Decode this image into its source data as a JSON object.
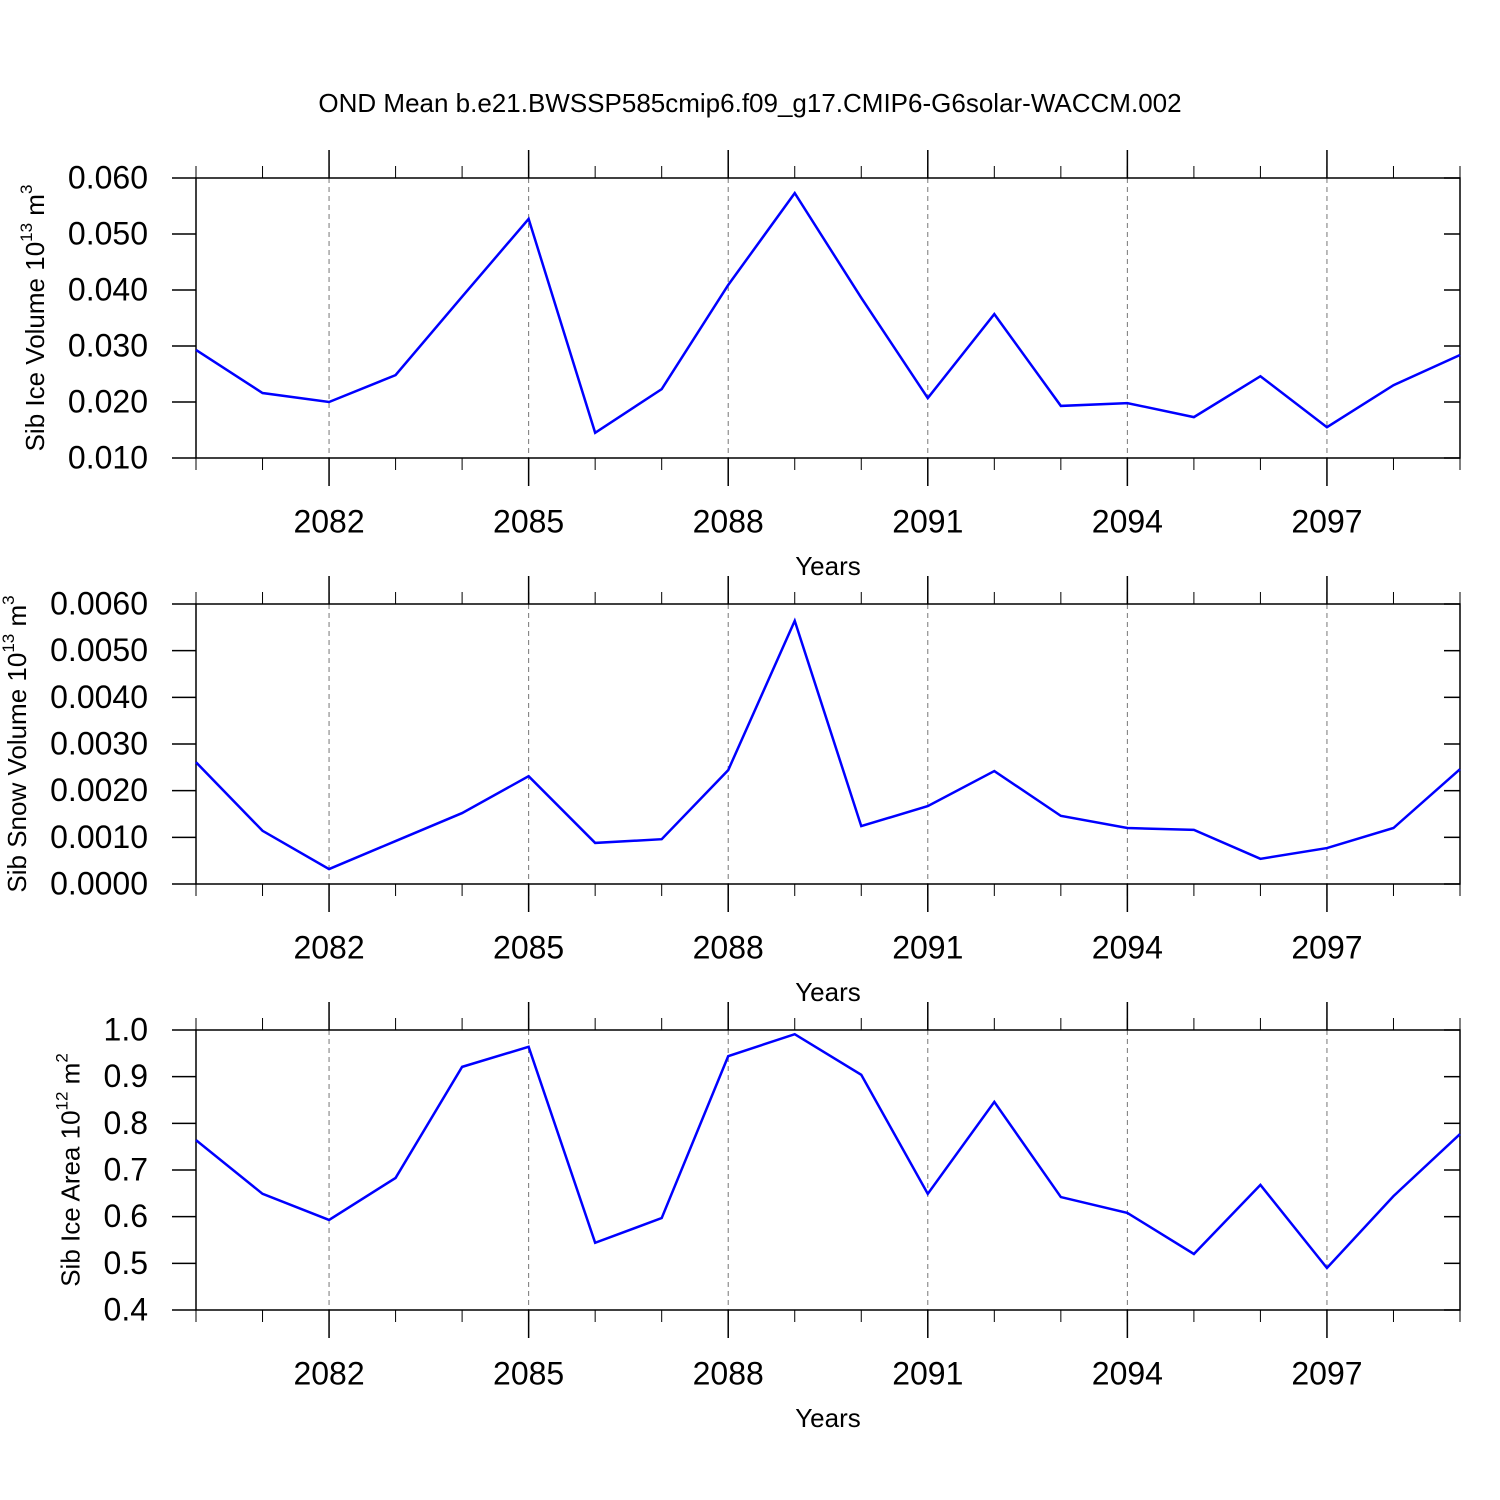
{
  "chart_data": [
    {
      "type": "line",
      "title": "OND Mean b.e21.BWSSP585cmip6.f09_g17.CMIP6-G6solar-WACCM.002",
      "ylabel": [
        "Sib Ice Volume 10",
        "13",
        " m",
        "3"
      ],
      "xlabel": "Years",
      "x": [
        2080,
        2081,
        2082,
        2083,
        2084,
        2085,
        2086,
        2087,
        2088,
        2089,
        2090,
        2091,
        2092,
        2093,
        2094,
        2095,
        2096,
        2097,
        2098,
        2099
      ],
      "series": [
        {
          "color": "#0000ff",
          "values": [
            0.0293,
            0.0216,
            0.02,
            0.0248,
            0.0388,
            0.0527,
            0.0145,
            0.0223,
            0.0409,
            0.0573,
            0.0386,
            0.0207,
            0.0357,
            0.0193,
            0.0198,
            0.0173,
            0.0246,
            0.0155,
            0.023,
            0.0284
          ]
        }
      ],
      "xlim": [
        2080,
        2099
      ],
      "xticks": [
        2082,
        2085,
        2088,
        2091,
        2094,
        2097
      ],
      "ylim": [
        0.01,
        0.06
      ],
      "yticks": [
        {
          "value": 0.01,
          "label": "0.010"
        },
        {
          "value": 0.02,
          "label": "0.020"
        },
        {
          "value": 0.03,
          "label": "0.030"
        },
        {
          "value": 0.04,
          "label": "0.040"
        },
        {
          "value": 0.05,
          "label": "0.050"
        },
        {
          "value": 0.06,
          "label": "0.060"
        }
      ],
      "grid": true
    },
    {
      "type": "line",
      "ylabel": [
        "Sib Snow Volume 10",
        "13",
        " m",
        "3"
      ],
      "xlabel": "Years",
      "x": [
        2080,
        2081,
        2082,
        2083,
        2084,
        2085,
        2086,
        2087,
        2088,
        2089,
        2090,
        2091,
        2092,
        2093,
        2094,
        2095,
        2096,
        2097,
        2098,
        2099
      ],
      "series": [
        {
          "color": "#0000ff",
          "values": [
            0.00261,
            0.00114,
            0.00032,
            0.00092,
            0.00152,
            0.00231,
            0.00088,
            0.00096,
            0.00244,
            0.00564,
            0.00124,
            0.00167,
            0.00242,
            0.00146,
            0.0012,
            0.00116,
            0.00054,
            0.00077,
            0.0012,
            0.00246
          ]
        }
      ],
      "xlim": [
        2080,
        2099
      ],
      "xticks": [
        2082,
        2085,
        2088,
        2091,
        2094,
        2097
      ],
      "ylim": [
        0,
        0.006
      ],
      "yticks": [
        {
          "value": 0,
          "label": "0.0000"
        },
        {
          "value": 0.001,
          "label": "0.0010"
        },
        {
          "value": 0.002,
          "label": "0.0020"
        },
        {
          "value": 0.003,
          "label": "0.0030"
        },
        {
          "value": 0.004,
          "label": "0.0040"
        },
        {
          "value": 0.005,
          "label": "0.0050"
        },
        {
          "value": 0.006,
          "label": "0.0060"
        }
      ],
      "grid": true
    },
    {
      "type": "line",
      "ylabel": [
        "Sib Ice Area 10",
        "12",
        " m",
        "2"
      ],
      "xlabel": "Years",
      "x": [
        2080,
        2081,
        2082,
        2083,
        2084,
        2085,
        2086,
        2087,
        2088,
        2089,
        2090,
        2091,
        2092,
        2093,
        2094,
        2095,
        2096,
        2097,
        2098,
        2099
      ],
      "series": [
        {
          "color": "#0000ff",
          "values": [
            0.764,
            0.649,
            0.593,
            0.683,
            0.921,
            0.964,
            0.544,
            0.597,
            0.944,
            0.991,
            0.904,
            0.649,
            0.846,
            0.642,
            0.608,
            0.52,
            0.668,
            0.49,
            0.644,
            0.777
          ]
        }
      ],
      "xlim": [
        2080,
        2099
      ],
      "xticks": [
        2082,
        2085,
        2088,
        2091,
        2094,
        2097
      ],
      "ylim": [
        0.4,
        1.0
      ],
      "yticks": [
        0.4,
        0.5,
        0.6,
        0.7,
        0.8,
        0.9,
        {
          "value": 1.0,
          "label": "1.0"
        }
      ],
      "grid": true
    }
  ]
}
